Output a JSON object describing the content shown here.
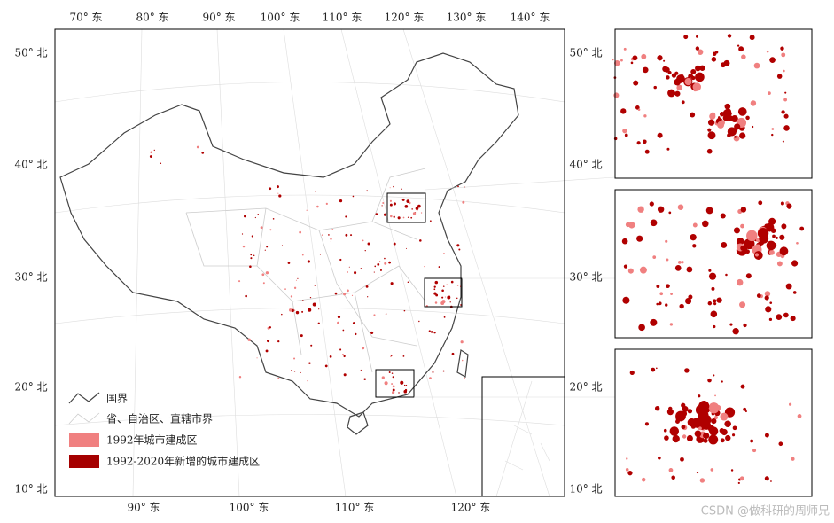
{
  "map": {
    "top_labels": [
      "70° 东",
      "80° 东",
      "90° 东",
      "100° 东",
      "110° 东",
      "120° 东",
      "130° 东",
      "140° 东"
    ],
    "bottom_labels": [
      "90° 东",
      "100° 东",
      "110° 东",
      "120° 东"
    ],
    "left_labels": [
      "50° 北",
      "40° 北",
      "30° 北",
      "20° 北",
      "10° 北"
    ],
    "right_labels": [
      "50° 北",
      "40° 北",
      "30° 北",
      "20° 北",
      "10° 北"
    ],
    "legend": [
      "国界",
      "省、自治区、直辖市界",
      "1992年城市建成区",
      "1992-2020年新增的城市建成区"
    ],
    "watermark": "CSDN @做科研的周师兄"
  }
}
